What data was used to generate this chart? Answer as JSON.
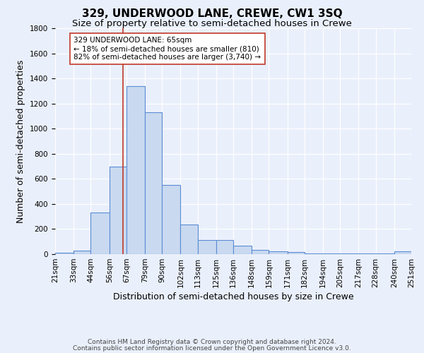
{
  "title": "329, UNDERWOOD LANE, CREWE, CW1 3SQ",
  "subtitle": "Size of property relative to semi-detached houses in Crewe",
  "xlabel": "Distribution of semi-detached houses by size in Crewe",
  "ylabel": "Number of semi-detached properties",
  "footnote1": "Contains HM Land Registry data © Crown copyright and database right 2024.",
  "footnote2": "Contains public sector information licensed under the Open Government Licence v3.0.",
  "bar_edges": [
    21,
    33,
    44,
    56,
    67,
    79,
    90,
    102,
    113,
    125,
    136,
    148,
    159,
    171,
    182,
    194,
    205,
    217,
    228,
    240,
    251
  ],
  "bar_heights": [
    10,
    30,
    330,
    700,
    1340,
    1130,
    550,
    235,
    115,
    115,
    65,
    35,
    20,
    15,
    8,
    5,
    5,
    5,
    5,
    20
  ],
  "tick_labels": [
    "21sqm",
    "33sqm",
    "44sqm",
    "56sqm",
    "67sqm",
    "79sqm",
    "90sqm",
    "102sqm",
    "113sqm",
    "125sqm",
    "136sqm",
    "148sqm",
    "159sqm",
    "171sqm",
    "182sqm",
    "194sqm",
    "205sqm",
    "217sqm",
    "228sqm",
    "240sqm",
    "251sqm"
  ],
  "bar_color": "#c9d9f0",
  "bar_edge_color": "#5b8dd4",
  "property_line_x": 65,
  "property_line_color": "#c0392b",
  "annotation_text": "329 UNDERWOOD LANE: 65sqm\n← 18% of semi-detached houses are smaller (810)\n82% of semi-detached houses are larger (3,740) →",
  "annotation_box_color": "#ffffff",
  "annotation_box_edge": "#c0392b",
  "ylim": [
    0,
    1800
  ],
  "yticks": [
    0,
    200,
    400,
    600,
    800,
    1000,
    1200,
    1400,
    1600,
    1800
  ],
  "bg_color": "#eaf0fb",
  "grid_color": "#ffffff",
  "title_fontsize": 11,
  "subtitle_fontsize": 9.5,
  "axis_label_fontsize": 9,
  "tick_fontsize": 7.5,
  "annotation_fontsize": 7.5,
  "footnote_fontsize": 6.5
}
